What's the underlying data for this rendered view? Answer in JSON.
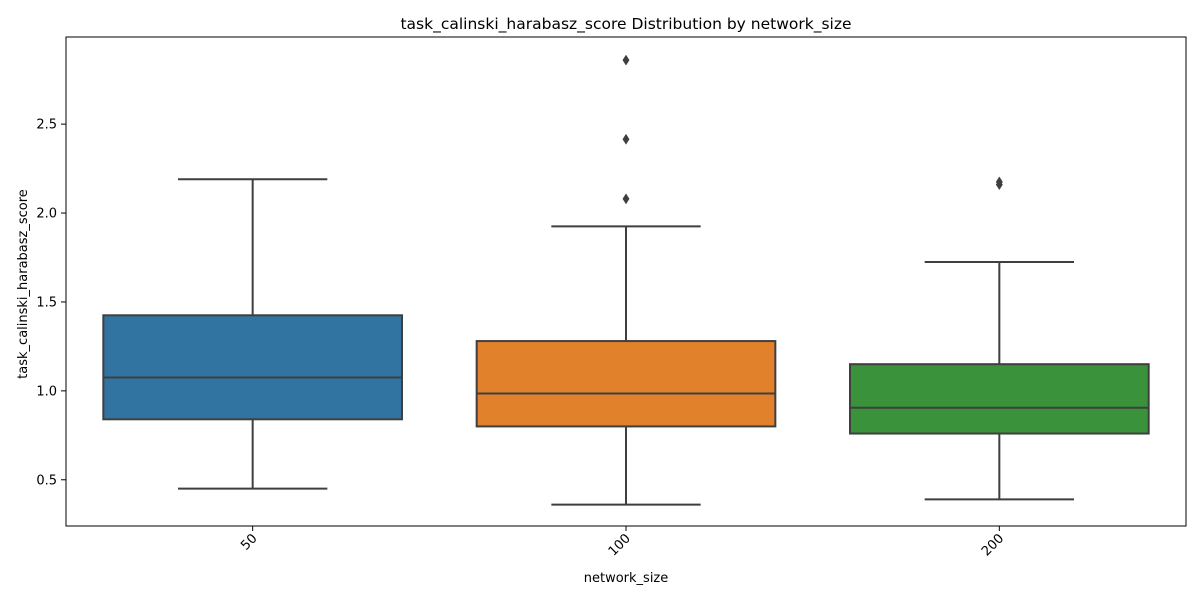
{
  "chart_data": {
    "type": "box",
    "title": "task_calinski_harabasz_score Distribution by network_size",
    "xlabel": "network_size",
    "ylabel": "task_calinski_harabasz_score",
    "ylim": [
      0.24,
      2.99
    ],
    "yticks": [
      0.5,
      1.0,
      1.5,
      2.0,
      2.5
    ],
    "ytick_labels": [
      "0.5",
      "1.0",
      "1.5",
      "2.0",
      "2.5"
    ],
    "grid": false,
    "categories": [
      "50",
      "100",
      "200"
    ],
    "boxes": [
      {
        "category": "50",
        "color": "#3274a1",
        "whisker_low": 0.45,
        "q1": 0.84,
        "median": 1.075,
        "q3": 1.425,
        "whisker_high": 2.19,
        "outliers": []
      },
      {
        "category": "100",
        "color": "#e1812c",
        "whisker_low": 0.36,
        "q1": 0.8,
        "median": 0.985,
        "q3": 1.28,
        "whisker_high": 1.925,
        "outliers": [
          2.08,
          2.415,
          2.86
        ]
      },
      {
        "category": "200",
        "color": "#3a923a",
        "whisker_low": 0.39,
        "q1": 0.76,
        "median": 0.905,
        "q3": 1.15,
        "whisker_high": 1.725,
        "outliers": [
          2.16,
          2.175
        ]
      }
    ]
  }
}
